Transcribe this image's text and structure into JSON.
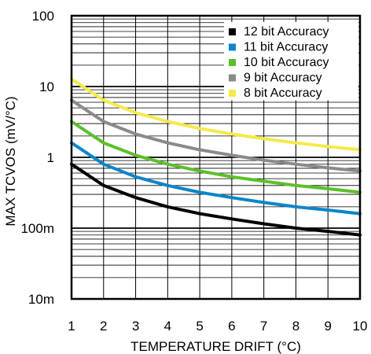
{
  "chart_data": {
    "type": "line",
    "xlabel": "TEMPERATURE DRIFT (°C)",
    "ylabel": "MAX TCVOS (mV/°C)",
    "y_scale": "log",
    "xlim": [
      1,
      10
    ],
    "ylim": [
      0.01,
      100
    ],
    "x_ticks": [
      1,
      2,
      3,
      4,
      5,
      6,
      7,
      8,
      9,
      10
    ],
    "x_tick_labels": [
      "1",
      "2",
      "3",
      "4",
      "5",
      "6",
      "7",
      "8",
      "9",
      "10"
    ],
    "y_ticks": [
      0.01,
      0.1,
      1,
      10,
      100
    ],
    "y_tick_labels": [
      "10m",
      "100m",
      "1",
      "10",
      "100"
    ],
    "grid": true,
    "legend_position": "top-right",
    "x": [
      1,
      2,
      3,
      4,
      5,
      6,
      7,
      8,
      9,
      10
    ],
    "series": [
      {
        "name": "12 bit Accuracy",
        "color": "#000000",
        "values": [
          0.8,
          0.4,
          0.27,
          0.2,
          0.16,
          0.135,
          0.115,
          0.1,
          0.09,
          0.08
        ]
      },
      {
        "name": "11 bit Accuracy",
        "color": "#0a86c8",
        "values": [
          1.6,
          0.8,
          0.53,
          0.4,
          0.32,
          0.27,
          0.23,
          0.2,
          0.18,
          0.16
        ]
      },
      {
        "name": "10 bit Accuracy",
        "color": "#5cbf2a",
        "values": [
          3.2,
          1.6,
          1.07,
          0.8,
          0.64,
          0.53,
          0.46,
          0.4,
          0.36,
          0.32
        ]
      },
      {
        "name": "9 bit Accuracy",
        "color": "#8a8a8a",
        "values": [
          6.4,
          3.2,
          2.13,
          1.6,
          1.28,
          1.07,
          0.91,
          0.8,
          0.71,
          0.64
        ]
      },
      {
        "name": "8 bit Accuracy",
        "color": "#f4ea4a",
        "values": [
          12.8,
          6.4,
          4.27,
          3.2,
          2.56,
          2.13,
          1.83,
          1.6,
          1.42,
          1.28
        ]
      }
    ]
  }
}
